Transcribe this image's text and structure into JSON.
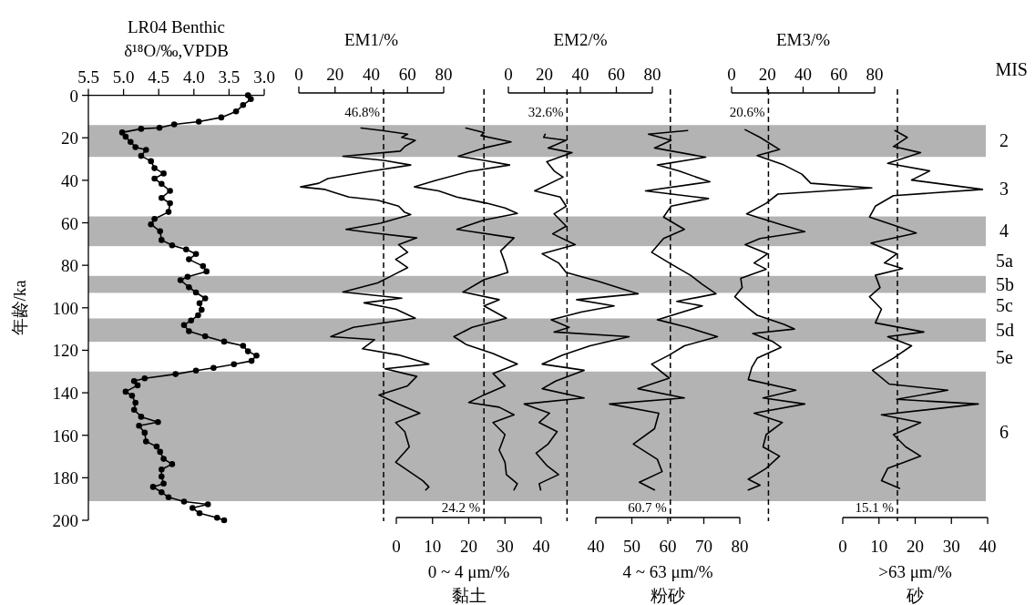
{
  "chart_data": [
    {
      "type": "line",
      "title": "LR04 Benthic",
      "xlabel": "δ¹⁸O/‰,VPDB",
      "ylabel": "年龄/ka",
      "xlim": [
        5.5,
        3.0
      ],
      "xticks": [
        {
          "value": 5.5,
          "label": "5.5"
        },
        {
          "value": 5.0,
          "label": "5.0"
        },
        {
          "value": 4.5,
          "label": "4.5"
        },
        {
          "value": 4.0,
          "label": "4.0"
        },
        {
          "value": 3.5,
          "label": "3.5"
        },
        {
          "value": 3.0,
          "label": "3.0"
        }
      ],
      "ylim": [
        200,
        0
      ],
      "yticks": [
        0,
        20,
        40,
        60,
        80,
        100,
        120,
        140,
        160,
        180,
        200
      ],
      "marker": "circle",
      "bands": [
        {
          "axis": "y",
          "from": 14,
          "to": 29,
          "color": "#b3b3b3"
        },
        {
          "axis": "y",
          "from": 57,
          "to": 71,
          "color": "#b3b3b3"
        },
        {
          "axis": "y",
          "from": 85,
          "to": 93,
          "color": "#b3b3b3"
        },
        {
          "axis": "y",
          "from": 105,
          "to": 116,
          "color": "#b3b3b3"
        },
        {
          "axis": "y",
          "from": 130,
          "to": 191,
          "color": "#b3b3b3"
        }
      ],
      "series": [
        {
          "color": "#000000",
          "values": [
            0,
            1.8,
            4.6,
            7.6,
            10.4,
            12.4,
            13.7,
            15.3,
            15.8,
            17.5,
            19.5,
            21.9,
            24.4,
            25.7,
            28.5,
            31,
            34.3,
            36.8,
            39.2,
            41.7,
            45,
            48.3,
            50.8,
            54.9,
            58.2,
            60.7,
            64,
            68.1,
            70.6,
            72.5,
            74.7,
            77.2,
            80.4,
            82.9,
            85.4,
            87,
            90.3,
            92.8,
            95.6,
            97.8,
            101,
            103.5,
            106,
            108.1,
            111,
            113.4,
            115.9,
            117.9,
            120.5,
            122.5,
            125,
            126.6,
            128.3,
            129.6,
            131.2,
            133.2,
            134.5,
            136.5,
            139.5,
            141.4,
            144.7,
            148,
            151.3,
            153.8,
            155.5,
            158.8,
            162.9,
            165.3,
            167.8,
            171.1,
            173.6,
            176.1,
            179.4,
            182.7,
            184.3,
            186.8,
            189.2,
            191.2,
            192.5,
            194.2,
            196.7,
            198.8,
            200
          ],
          "x": [
            3.23,
            3.19,
            3.3,
            3.4,
            3.61,
            3.93,
            4.28,
            4.49,
            4.75,
            5.02,
            4.97,
            4.9,
            4.83,
            4.68,
            4.75,
            4.61,
            4.56,
            4.43,
            4.56,
            4.46,
            4.34,
            4.46,
            4.34,
            4.36,
            4.56,
            4.61,
            4.48,
            4.46,
            4.31,
            4.11,
            3.97,
            4.07,
            3.87,
            3.82,
            4.09,
            4.19,
            4.07,
            3.97,
            3.84,
            3.92,
            3.89,
            3.94,
            4.04,
            4.14,
            4.07,
            3.84,
            3.57,
            3.3,
            3.23,
            3.11,
            3.18,
            3.43,
            3.72,
            3.97,
            4.26,
            4.7,
            4.85,
            4.8,
            4.97,
            4.88,
            4.83,
            4.85,
            4.75,
            4.51,
            4.78,
            4.7,
            4.68,
            4.53,
            4.48,
            4.43,
            4.31,
            4.46,
            4.46,
            4.43,
            4.58,
            4.46,
            4.36,
            4.14,
            3.8,
            4.02,
            3.92,
            3.67,
            3.57
          ]
        }
      ]
    },
    {
      "type": "line",
      "xlabel": "EM1/%",
      "xlim": [
        0,
        80
      ],
      "xticks": [
        0,
        20,
        40,
        60,
        80
      ],
      "ylim": [
        200,
        0
      ],
      "tick_labels": "x",
      "bands": [
        {
          "axis": "y",
          "from": 14,
          "to": 29,
          "color": "#b3b3b3"
        },
        {
          "axis": "y",
          "from": 57,
          "to": 71,
          "color": "#b3b3b3"
        },
        {
          "axis": "y",
          "from": 85,
          "to": 93,
          "color": "#b3b3b3"
        },
        {
          "axis": "y",
          "from": 105,
          "to": 116,
          "color": "#b3b3b3"
        },
        {
          "axis": "y",
          "from": 130,
          "to": 191,
          "color": "#b3b3b3"
        }
      ],
      "ref_lines": [
        {
          "axis": "x",
          "value": 46.8,
          "label": "46.8%",
          "line_style": "dashed",
          "color": "#000000"
        }
      ],
      "series": [
        {
          "color": "#000000",
          "values": [
            15.4,
            16.6,
            18.3,
            19.8,
            21.2,
            24.1,
            26.3,
            28.7,
            30.6,
            32.8,
            35.9,
            39.2,
            41.4,
            43.1,
            44.3,
            45.7,
            47.9,
            49.4,
            52.2,
            55.1,
            56.1,
            60.2,
            63.1,
            64.5,
            67.1,
            70.3,
            73.9,
            77.2,
            81.1,
            84.7,
            88.3,
            92.6,
            95.5,
            97.7,
            100.6,
            104.9,
            109.2,
            113.6,
            115,
            119.3,
            122.2,
            126.5,
            128.7,
            132.3,
            136.7,
            141,
            145.3,
            149.6,
            154,
            158.3,
            165.5,
            172.7,
            175.6,
            181.4,
            184.3,
            185.7
          ],
          "x": [
            34.3,
            46.0,
            60.1,
            56.8,
            64.3,
            58.5,
            56.0,
            24.3,
            46.8,
            61.8,
            38.5,
            16.0,
            11.0,
            1.0,
            14.5,
            19.5,
            27.6,
            43.5,
            55.1,
            58.5,
            61.8,
            45.1,
            26.0,
            38.5,
            65.1,
            55.1,
            60.1,
            53.5,
            60.1,
            51.8,
            43.5,
            24.3,
            56.8,
            36.0,
            53.5,
            64.3,
            30.1,
            17.6,
            41.8,
            35.1,
            55.1,
            71.8,
            47.6,
            65.1,
            60.1,
            44.3,
            55.1,
            66.8,
            53.5,
            58.5,
            61.0,
            53.5,
            58.5,
            68.5,
            71.8,
            70.1
          ]
        }
      ]
    },
    {
      "type": "line",
      "xlabel": "0 ~ 4 μm/%\n黏土",
      "xlim": [
        0,
        40
      ],
      "xticks": [
        0,
        10,
        20,
        30,
        40
      ],
      "ylim": [
        200,
        0
      ],
      "tick_labels": "x",
      "bands": [
        {
          "axis": "y",
          "from": 14,
          "to": 29,
          "color": "#b3b3b3"
        },
        {
          "axis": "y",
          "from": 57,
          "to": 71,
          "color": "#b3b3b3"
        },
        {
          "axis": "y",
          "from": 85,
          "to": 93,
          "color": "#b3b3b3"
        },
        {
          "axis": "y",
          "from": 105,
          "to": 116,
          "color": "#b3b3b3"
        },
        {
          "axis": "y",
          "from": 130,
          "to": 191,
          "color": "#b3b3b3"
        }
      ],
      "ref_lines": [
        {
          "axis": "x",
          "value": 24.2,
          "label": "24.2 %",
          "line_style": "dashed",
          "color": "#000000"
        }
      ],
      "series": [
        {
          "color": "#000000",
          "values": [
            15.4,
            17.6,
            19,
            21.9,
            24.8,
            28.7,
            30.6,
            32.8,
            35.9,
            40,
            43.1,
            45,
            47.9,
            50.8,
            53,
            55.6,
            58.7,
            63.1,
            67.1,
            73.2,
            78.9,
            83.3,
            86.8,
            92.6,
            96.2,
            99.1,
            104.9,
            109.2,
            113.6,
            117.2,
            121.5,
            126.5,
            130.9,
            136.7,
            141,
            144.6,
            146.8,
            150.4,
            154,
            159.7,
            167,
            172.7,
            178.5,
            182.8,
            185.7
          ],
          "x": [
            19.2,
            24.2,
            23.4,
            31.7,
            24.2,
            17.1,
            24.2,
            31.3,
            20.0,
            10.9,
            5.0,
            11.7,
            16.7,
            25.0,
            30.0,
            33.4,
            24.2,
            16.7,
            32.5,
            28.8,
            30.0,
            30.8,
            24.2,
            18.4,
            28.4,
            24.2,
            30.4,
            20.9,
            15.9,
            19.2,
            26.7,
            33.4,
            26.7,
            30.0,
            24.2,
            20.0,
            28.4,
            32.5,
            26.7,
            30.0,
            28.4,
            30.0,
            30.4,
            33.4,
            32.5
          ]
        }
      ]
    },
    {
      "type": "line",
      "xlabel": "EM2/%",
      "xlim": [
        0,
        80
      ],
      "xticks": [
        0,
        20,
        40,
        60,
        80
      ],
      "ylim": [
        200,
        0
      ],
      "tick_labels": "x",
      "bands": [
        {
          "axis": "y",
          "from": 14,
          "to": 29,
          "color": "#b3b3b3"
        },
        {
          "axis": "y",
          "from": 57,
          "to": 71,
          "color": "#b3b3b3"
        },
        {
          "axis": "y",
          "from": 85,
          "to": 93,
          "color": "#b3b3b3"
        },
        {
          "axis": "y",
          "from": 105,
          "to": 116,
          "color": "#b3b3b3"
        },
        {
          "axis": "y",
          "from": 130,
          "to": 191,
          "color": "#b3b3b3"
        }
      ],
      "ref_lines": [
        {
          "axis": "x",
          "value": 32.6,
          "label": "32.6%",
          "line_style": "dashed",
          "color": "#000000"
        }
      ],
      "series": [
        {
          "color": "#000000",
          "values": [
            18.3,
            19.8,
            21.2,
            24.8,
            27,
            31.3,
            35.6,
            38.5,
            45,
            47.9,
            52.2,
            55.8,
            61.6,
            65.2,
            70.3,
            74.6,
            78.9,
            83.3,
            87.6,
            93.4,
            96.2,
            99.1,
            102,
            105.6,
            109.2,
            111.4,
            113.6,
            117.9,
            122.2,
            126.5,
            129.4,
            134.5,
            138.1,
            142.4,
            145.3,
            149.6,
            154,
            158.3,
            164.1,
            168.4,
            174.2,
            178.5,
            182.8,
            185.7
          ],
          "x": [
            20.4,
            19.6,
            32.1,
            22.1,
            35.4,
            21.3,
            25.4,
            30.4,
            14.6,
            28.8,
            32.1,
            25.4,
            32.1,
            24.6,
            37.1,
            18.8,
            27.9,
            32.1,
            50.4,
            72.1,
            37.9,
            58.8,
            40.4,
            23.8,
            33.8,
            25.4,
            67.1,
            45.4,
            30.4,
            18.8,
            42.1,
            26.3,
            18.8,
            42.1,
            8.8,
            22.9,
            17.1,
            27.1,
            22.1,
            15.4,
            21.3,
            27.9,
            17.1,
            17.9
          ]
        }
      ]
    },
    {
      "type": "line",
      "xlabel": "4 ~ 63 μm/%\n粉砂",
      "xlim": [
        40,
        80
      ],
      "xticks": [
        40,
        50,
        60,
        70,
        80
      ],
      "ylim": [
        200,
        0
      ],
      "tick_labels": "x",
      "bands": [
        {
          "axis": "y",
          "from": 14,
          "to": 29,
          "color": "#b3b3b3"
        },
        {
          "axis": "y",
          "from": 57,
          "to": 71,
          "color": "#b3b3b3"
        },
        {
          "axis": "y",
          "from": 85,
          "to": 93,
          "color": "#b3b3b3"
        },
        {
          "axis": "y",
          "from": 105,
          "to": 116,
          "color": "#b3b3b3"
        },
        {
          "axis": "y",
          "from": 130,
          "to": 191,
          "color": "#b3b3b3"
        }
      ],
      "ref_lines": [
        {
          "axis": "x",
          "value": 60.7,
          "label": "60.7 %",
          "line_style": "dashed",
          "color": "#000000"
        }
      ],
      "series": [
        {
          "color": "#000000",
          "values": [
            16.6,
            18.3,
            21.2,
            24.8,
            29.1,
            32.8,
            35.6,
            40.7,
            45,
            48.6,
            52.2,
            57.3,
            63.1,
            67.4,
            73.9,
            78.9,
            84.7,
            89,
            93.4,
            97,
            99.1,
            105.6,
            109.2,
            113.6,
            117.9,
            122.2,
            126.5,
            133.1,
            138.1,
            142.4,
            145.3,
            149.6,
            156.9,
            164.1,
            171.3,
            177.1,
            182.1,
            185.7
          ],
          "x": [
            65.5,
            54.6,
            60.9,
            56.3,
            70.5,
            57.1,
            63.0,
            71.7,
            53.8,
            71.3,
            60.9,
            58.8,
            64.6,
            58.8,
            55.5,
            60.4,
            66.3,
            69.6,
            73.4,
            62.5,
            69.6,
            57.1,
            65.5,
            73.8,
            64.6,
            60.4,
            55.5,
            60.4,
            51.7,
            64.6,
            43.8,
            57.5,
            56.3,
            50.4,
            57.1,
            58.4,
            52.1,
            56.3
          ]
        }
      ]
    },
    {
      "type": "line",
      "xlabel": "EM3/%",
      "xlim": [
        0,
        80
      ],
      "xticks": [
        0,
        20,
        40,
        60,
        80
      ],
      "ylim": [
        200,
        0
      ],
      "tick_labels": "x",
      "bands": [
        {
          "axis": "y",
          "from": 14,
          "to": 29,
          "color": "#b3b3b3"
        },
        {
          "axis": "y",
          "from": 57,
          "to": 71,
          "color": "#b3b3b3"
        },
        {
          "axis": "y",
          "from": 85,
          "to": 93,
          "color": "#b3b3b3"
        },
        {
          "axis": "y",
          "from": 105,
          "to": 116,
          "color": "#b3b3b3"
        },
        {
          "axis": "y",
          "from": 130,
          "to": 191,
          "color": "#b3b3b3"
        }
      ],
      "ref_lines": [
        {
          "axis": "x",
          "value": 20.6,
          "label": "20.6%",
          "line_style": "dashed",
          "color": "#000000"
        }
      ],
      "series": [
        {
          "color": "#000000",
          "values": [
            16.2,
            19.8,
            25.5,
            28.4,
            32.8,
            37.1,
            41.4,
            43.6,
            46.5,
            50.8,
            55.8,
            60.9,
            64.2,
            67.4,
            70.3,
            74.6,
            78.9,
            81.8,
            86.1,
            90.5,
            94.8,
            99.1,
            103.5,
            107.8,
            110,
            112.1,
            115.7,
            118.6,
            123.7,
            128,
            133.8,
            138.8,
            142.4,
            145.3,
            149.6,
            154,
            159.7,
            165.5,
            169.8,
            175.6,
            180.7,
            183.5,
            185.7
          ],
          "x": [
            7.6,
            15.9,
            26.8,
            14.3,
            29.3,
            39.3,
            44.3,
            78.4,
            25.9,
            19.3,
            8.4,
            27.6,
            40.9,
            15.9,
            7.6,
            20.1,
            12.6,
            19.3,
            5.1,
            5.9,
            1.8,
            7.6,
            14.3,
            29.3,
            35.1,
            11.8,
            22.6,
            27.6,
            14.3,
            11.3,
            9.3,
            35.9,
            17.6,
            40.9,
            12.6,
            28.4,
            19.3,
            17.6,
            26.8,
            19.3,
            9.3,
            15.9,
            9.3
          ]
        }
      ]
    },
    {
      "type": "line",
      "xlabel": ">63 μm/%\n砂",
      "xlim": [
        0,
        40
      ],
      "xticks": [
        0,
        10,
        20,
        30,
        40
      ],
      "ylim": [
        200,
        0
      ],
      "tick_labels": "x",
      "bands": [
        {
          "axis": "y",
          "from": 14,
          "to": 29,
          "color": "#b3b3b3"
        },
        {
          "axis": "y",
          "from": 57,
          "to": 71,
          "color": "#b3b3b3"
        },
        {
          "axis": "y",
          "from": 85,
          "to": 93,
          "color": "#b3b3b3"
        },
        {
          "axis": "y",
          "from": 105,
          "to": 116,
          "color": "#b3b3b3"
        },
        {
          "axis": "y",
          "from": 130,
          "to": 191,
          "color": "#b3b3b3"
        }
      ],
      "ref_lines": [
        {
          "axis": "x",
          "value": 15.1,
          "label": "15.1 %",
          "line_style": "dashed",
          "color": "#000000"
        }
      ],
      "annotations": [
        "MIS",
        "2",
        "3",
        "4",
        "5a",
        "5b",
        "5c",
        "5d",
        "5e",
        "6"
      ],
      "series": [
        {
          "color": "#000000",
          "values": [
            16.6,
            19.8,
            24.1,
            27,
            32,
            35.6,
            39.9,
            44.3,
            47.2,
            52.2,
            57.3,
            61.6,
            64.8,
            69.5,
            74.6,
            78.9,
            81.5,
            84.7,
            90.5,
            94.8,
            100.6,
            107.1,
            111.4,
            113.6,
            117.9,
            123.7,
            129.4,
            135.9,
            138.8,
            143.1,
            145.3,
            150.4,
            154,
            159.7,
            165.5,
            169.8,
            175.6,
            181.4,
            185
          ],
          "x": [
            14.4,
            17.8,
            14.0,
            21.5,
            12.4,
            24.0,
            19.0,
            38.6,
            14.0,
            9.0,
            7.4,
            14.9,
            20.3,
            7.8,
            14.9,
            11.5,
            16.5,
            9.0,
            10.3,
            7.4,
            10.7,
            9.0,
            22.4,
            12.4,
            19.0,
            14.0,
            8.2,
            12.8,
            29.0,
            14.9,
            37.4,
            10.7,
            21.5,
            14.0,
            17.4,
            21.5,
            12.4,
            10.7,
            15.7
          ]
        }
      ]
    }
  ]
}
